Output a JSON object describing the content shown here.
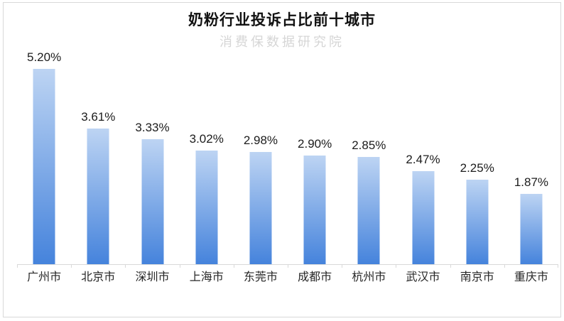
{
  "chart_data": {
    "type": "bar",
    "title": "奶粉行业投诉占比前十城市",
    "watermark": "消费保数据研究院",
    "categories": [
      "广州市",
      "北京市",
      "深圳市",
      "上海市",
      "东莞市",
      "成都市",
      "杭州市",
      "武汉市",
      "南京市",
      "重庆市"
    ],
    "values": [
      5.2,
      3.61,
      3.33,
      3.02,
      2.98,
      2.9,
      2.85,
      2.47,
      2.25,
      1.87
    ],
    "data_labels": [
      "5.20%",
      "3.61%",
      "3.33%",
      "3.02%",
      "2.98%",
      "2.90%",
      "2.85%",
      "2.47%",
      "2.25%",
      "1.87%"
    ],
    "value_suffix": "%",
    "xlabel": "",
    "ylabel": "",
    "ylim": [
      0,
      5.2
    ],
    "grid": false,
    "legend": "none",
    "y_axis_visible": false,
    "colors": {
      "bar_gradient_top": "#bdd4f3",
      "bar_gradient_bottom": "#4583dc",
      "axis_line": "#d9d9d9",
      "chart_border": "#d9d9d9",
      "title_text": "#111111",
      "label_text": "#1c1c1c",
      "watermark_text": "#d6d6d6"
    }
  }
}
